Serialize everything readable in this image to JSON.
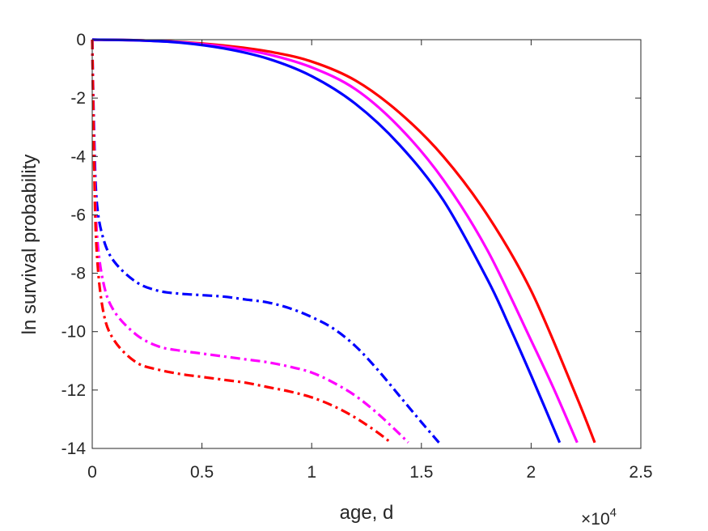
{
  "chart_data": {
    "type": "line",
    "title": "",
    "xlabel": "age, d",
    "ylabel": "ln survival probability",
    "x_exponent_label": "×10",
    "x_exponent_power": "4",
    "xlim": [
      0,
      25000
    ],
    "ylim": [
      -14,
      0
    ],
    "x_ticks": [
      0,
      5000,
      10000,
      15000,
      20000,
      25000
    ],
    "x_tick_labels": [
      "0",
      "0.5",
      "1",
      "1.5",
      "2",
      "2.5"
    ],
    "y_ticks": [
      0,
      -2,
      -4,
      -6,
      -8,
      -10,
      -12,
      -14
    ],
    "y_tick_labels": [
      "0",
      "-2",
      "-4",
      "-6",
      "-8",
      "-10",
      "-12",
      "-14"
    ],
    "grid": false,
    "legend": "none",
    "series": [
      {
        "color": "#ff0000",
        "style": "solid",
        "x": [
          0,
          2000,
          4000,
          6000,
          8000,
          10000,
          12000,
          14000,
          16000,
          18000,
          20000,
          22000,
          22900
        ],
        "y": [
          0,
          -0.02,
          -0.08,
          -0.2,
          -0.4,
          -0.75,
          -1.4,
          -2.5,
          -4.0,
          -6.0,
          -8.6,
          -12.1,
          -13.8
        ]
      },
      {
        "color": "#ff00ff",
        "style": "solid",
        "x": [
          0,
          2000,
          4000,
          6000,
          8000,
          10000,
          12000,
          14000,
          16000,
          18000,
          20000,
          21000,
          22100
        ],
        "y": [
          0,
          -0.02,
          -0.09,
          -0.24,
          -0.5,
          -0.95,
          -1.7,
          -3.0,
          -4.8,
          -7.2,
          -10.3,
          -11.9,
          -13.8
        ]
      },
      {
        "color": "#0000ff",
        "style": "solid",
        "x": [
          0,
          2000,
          4000,
          6000,
          8000,
          10000,
          12000,
          14000,
          16000,
          18000,
          19000,
          20000,
          21300
        ],
        "y": [
          0,
          -0.02,
          -0.1,
          -0.3,
          -0.65,
          -1.25,
          -2.2,
          -3.6,
          -5.5,
          -8.2,
          -9.8,
          -11.5,
          -13.8
        ]
      },
      {
        "color": "#0000ff",
        "style": "dashdot",
        "x": [
          0,
          80,
          200,
          500,
          1000,
          2000,
          3000,
          4000,
          5000,
          6000,
          7000,
          8000,
          9000,
          10000,
          11000,
          12000,
          13000,
          14000,
          15000,
          15800
        ],
        "y": [
          0,
          -3.0,
          -5.5,
          -6.8,
          -7.6,
          -8.3,
          -8.6,
          -8.7,
          -8.75,
          -8.8,
          -8.9,
          -9.0,
          -9.2,
          -9.5,
          -9.9,
          -10.5,
          -11.3,
          -12.2,
          -13.1,
          -13.8
        ]
      },
      {
        "color": "#ff00ff",
        "style": "dashdot",
        "x": [
          0,
          80,
          200,
          500,
          1000,
          2000,
          3000,
          4000,
          5000,
          6000,
          7000,
          8000,
          9000,
          10000,
          11000,
          12000,
          13000,
          14000,
          14400
        ],
        "y": [
          0,
          -3.5,
          -6.5,
          -8.3,
          -9.3,
          -10.1,
          -10.5,
          -10.65,
          -10.75,
          -10.85,
          -10.95,
          -11.05,
          -11.2,
          -11.4,
          -11.75,
          -12.2,
          -12.8,
          -13.5,
          -13.8
        ]
      },
      {
        "color": "#ff0000",
        "style": "dashdot",
        "x": [
          0,
          80,
          200,
          500,
          1000,
          2000,
          3000,
          4000,
          5000,
          6000,
          7000,
          8000,
          9000,
          10000,
          11000,
          12000,
          13000,
          13600
        ],
        "y": [
          0,
          -4.0,
          -7.2,
          -9.3,
          -10.3,
          -11.05,
          -11.3,
          -11.45,
          -11.55,
          -11.65,
          -11.75,
          -11.9,
          -12.05,
          -12.25,
          -12.55,
          -12.95,
          -13.45,
          -13.8
        ]
      }
    ]
  }
}
